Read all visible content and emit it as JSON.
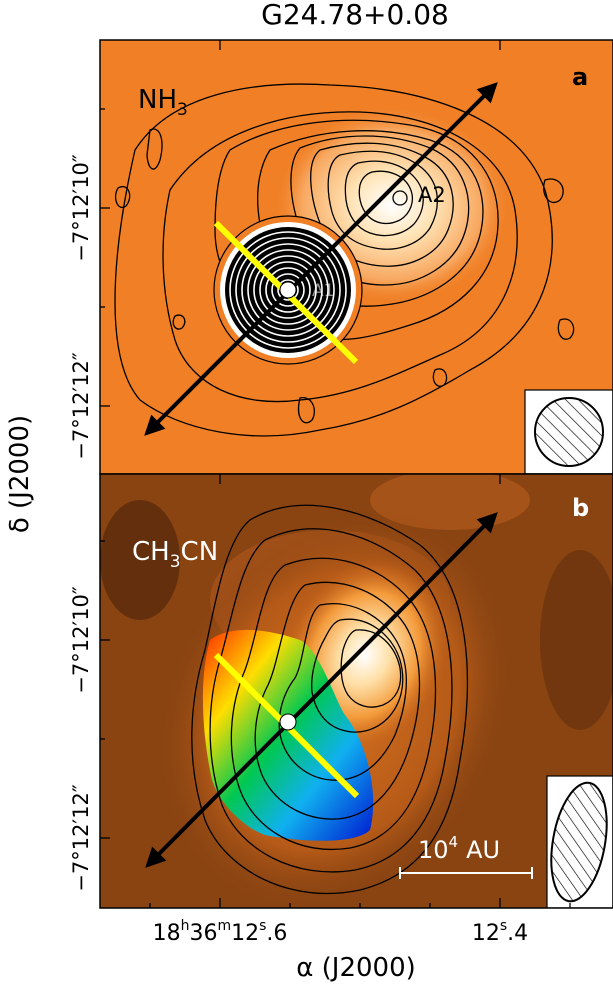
{
  "figure": {
    "title": "G24.78+0.08",
    "x_axis_label": "α (J2000)",
    "y_axis_label": "δ (J2000)",
    "x_ticks": [
      {
        "h": "18",
        "m": "36",
        "s": "12",
        "frac": "6"
      },
      {
        "s": "12",
        "frac": "4"
      }
    ],
    "y_ticks_top": [
      "−7°12′10″",
      "−7°12′12″"
    ],
    "y_ticks_bottom": [
      "−7°12′10″",
      "−7°12′12″"
    ]
  },
  "panel_a": {
    "letter": "a",
    "molecule": {
      "base": "NH",
      "sub": "3",
      "rest": ""
    },
    "labels": [
      "A1",
      "A2"
    ],
    "colors": {
      "background": "#f07f25",
      "outline_marker": "#ffff00"
    }
  },
  "panel_b": {
    "letter": "b",
    "molecule": {
      "base": "CH",
      "sub": "3",
      "rest": "CN"
    },
    "scale_bar": {
      "value": "10",
      "exp": "4",
      "unit": "AU"
    },
    "colors": {
      "background": "#8a4412",
      "velocity_map": [
        "#ff2a00",
        "#ffde00",
        "#00c850",
        "#10b0f0",
        "#0018d0"
      ]
    }
  }
}
